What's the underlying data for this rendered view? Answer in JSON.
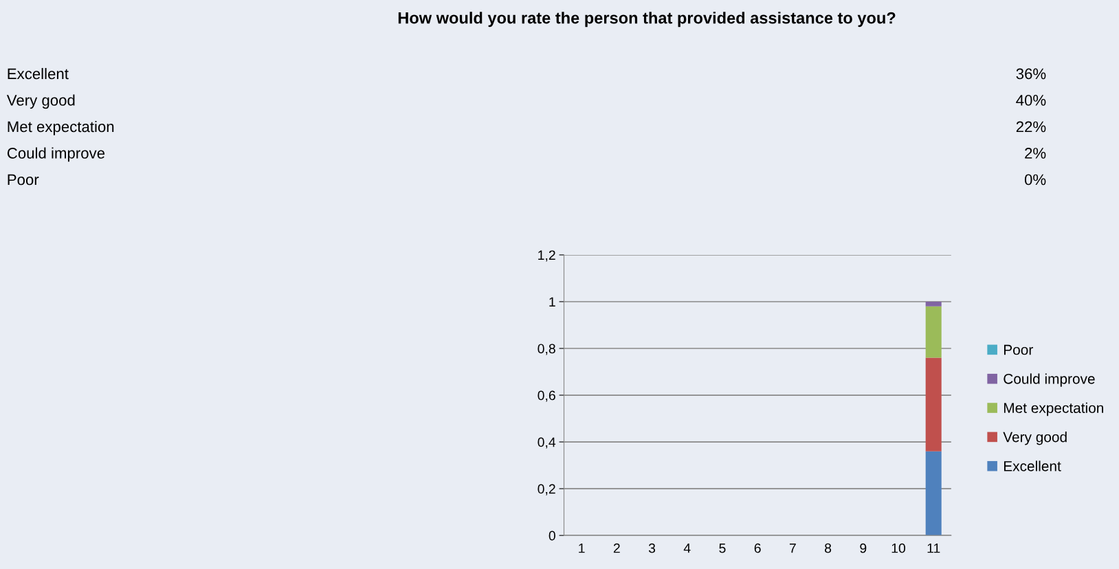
{
  "chart_data": {
    "type": "bar",
    "title": "How would you rate the person that provided assistance to you?",
    "annotations": [
      "Excellent",
      "36%",
      "Very good",
      "40%",
      "Met expectation",
      "22%",
      "Could improve",
      "2%",
      "Poor",
      "0%"
    ],
    "categories": [
      "1",
      "2",
      "3",
      "4",
      "5",
      "6",
      "7",
      "8",
      "9",
      "10",
      "11"
    ],
    "series": [
      {
        "name": "Excellent",
        "color": "#4f81bd",
        "values": [
          null,
          null,
          null,
          null,
          null,
          null,
          null,
          null,
          null,
          null,
          0.36
        ]
      },
      {
        "name": "Very good",
        "color": "#c0504d",
        "values": [
          null,
          null,
          null,
          null,
          null,
          null,
          null,
          null,
          null,
          null,
          0.4
        ]
      },
      {
        "name": "Met expectation",
        "color": "#9bbb59",
        "values": [
          null,
          null,
          null,
          null,
          null,
          null,
          null,
          null,
          null,
          null,
          0.22
        ]
      },
      {
        "name": "Could improve",
        "color": "#8064a2",
        "values": [
          null,
          null,
          null,
          null,
          null,
          null,
          null,
          null,
          null,
          null,
          0.02
        ]
      },
      {
        "name": "Poor",
        "color": "#4bacc6",
        "values": [
          null,
          null,
          null,
          null,
          null,
          null,
          null,
          null,
          null,
          null,
          0
        ]
      }
    ],
    "stacked": true,
    "ylim": [
      0,
      1.2
    ],
    "yticks": [
      0,
      {
        "value": 0.2,
        "label": "0,2"
      },
      {
        "value": 0.4,
        "label": "0,4"
      },
      {
        "value": 0.6,
        "label": "0,6"
      },
      {
        "value": 0.8,
        "label": "0,8"
      },
      1,
      {
        "value": 1.2,
        "label": "1,2"
      }
    ],
    "grid": "y",
    "legend": "right"
  }
}
